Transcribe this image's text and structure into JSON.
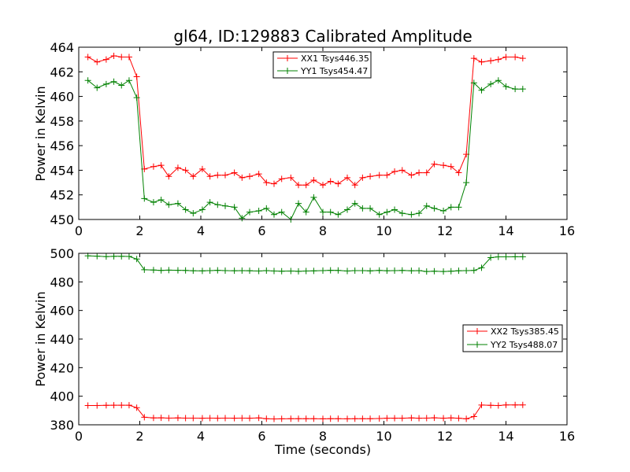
{
  "chart_data": [
    {
      "type": "line",
      "title": "gl64, ID:129883 Calibrated Amplitude",
      "xlabel": "",
      "ylabel": "Power in Kelvin",
      "xlim": [
        0,
        16
      ],
      "ylim": [
        450,
        464
      ],
      "xticks": [
        0,
        2,
        4,
        6,
        8,
        10,
        12,
        14,
        16
      ],
      "yticks": [
        450,
        452,
        454,
        456,
        458,
        460,
        462,
        464
      ],
      "grid": false,
      "legend_position": "top-center",
      "x": [
        0.3,
        0.6,
        0.9,
        1.15,
        1.4,
        1.65,
        1.9,
        2.15,
        2.45,
        2.7,
        2.95,
        3.25,
        3.5,
        3.75,
        4.05,
        4.3,
        4.55,
        4.8,
        5.1,
        5.35,
        5.6,
        5.9,
        6.15,
        6.4,
        6.65,
        6.95,
        7.2,
        7.45,
        7.7,
        8.0,
        8.25,
        8.5,
        8.8,
        9.05,
        9.3,
        9.55,
        9.85,
        10.1,
        10.35,
        10.6,
        10.9,
        11.15,
        11.4,
        11.65,
        11.95,
        12.2,
        12.45,
        12.7,
        12.95,
        13.2,
        13.5,
        13.75,
        14.0,
        14.3,
        14.55
      ],
      "series": [
        {
          "name": "XX1 Tsys446.35",
          "color": "#ff0000",
          "values": [
            463.2,
            462.8,
            463.0,
            463.3,
            463.2,
            463.2,
            461.6,
            454.1,
            454.3,
            454.4,
            453.5,
            454.2,
            454.0,
            453.5,
            454.1,
            453.5,
            453.6,
            453.6,
            453.8,
            453.4,
            453.5,
            453.7,
            453.0,
            452.9,
            453.3,
            453.4,
            452.8,
            452.8,
            453.2,
            452.8,
            453.1,
            452.9,
            453.4,
            452.8,
            453.4,
            453.5,
            453.6,
            453.6,
            453.9,
            454.0,
            453.6,
            453.8,
            453.8,
            454.5,
            454.4,
            454.3,
            453.8,
            455.3,
            463.1,
            462.8,
            462.9,
            463.0,
            463.2,
            463.2,
            463.1
          ]
        },
        {
          "name": "YY1 Tsys454.47",
          "color": "#008000",
          "values": [
            461.3,
            460.7,
            461.0,
            461.2,
            460.9,
            461.3,
            459.9,
            451.7,
            451.4,
            451.6,
            451.2,
            451.3,
            450.8,
            450.5,
            450.8,
            451.4,
            451.2,
            451.1,
            451.0,
            450.1,
            450.6,
            450.7,
            450.9,
            450.4,
            450.6,
            450.0,
            451.3,
            450.6,
            451.8,
            450.6,
            450.6,
            450.4,
            450.8,
            451.3,
            450.9,
            450.9,
            450.4,
            450.6,
            450.8,
            450.5,
            450.4,
            450.5,
            451.1,
            450.9,
            450.7,
            451.0,
            451.0,
            453.0,
            461.1,
            460.5,
            461.0,
            461.3,
            460.8,
            460.6,
            460.6
          ]
        }
      ]
    },
    {
      "type": "line",
      "title": "",
      "xlabel": "Time (seconds)",
      "ylabel": "Power in Kelvin",
      "xlim": [
        0,
        16
      ],
      "ylim": [
        380,
        500
      ],
      "xticks": [
        0,
        2,
        4,
        6,
        8,
        10,
        12,
        14,
        16
      ],
      "yticks": [
        380,
        400,
        420,
        440,
        460,
        480,
        500
      ],
      "grid": false,
      "legend_position": "center-right",
      "x": [
        0.3,
        0.6,
        0.9,
        1.15,
        1.4,
        1.65,
        1.9,
        2.15,
        2.45,
        2.7,
        2.95,
        3.25,
        3.5,
        3.75,
        4.05,
        4.3,
        4.55,
        4.8,
        5.1,
        5.35,
        5.6,
        5.9,
        6.15,
        6.4,
        6.65,
        6.95,
        7.2,
        7.45,
        7.7,
        8.0,
        8.25,
        8.5,
        8.8,
        9.05,
        9.3,
        9.55,
        9.85,
        10.1,
        10.35,
        10.6,
        10.9,
        11.15,
        11.4,
        11.65,
        11.95,
        12.2,
        12.45,
        12.7,
        12.95,
        13.2,
        13.5,
        13.75,
        14.0,
        14.3,
        14.55
      ],
      "series": [
        {
          "name": "XX2 Tsys385.45",
          "color": "#ff0000",
          "values": [
            393.5,
            393.5,
            393.6,
            393.7,
            393.7,
            393.7,
            392.0,
            385.3,
            384.8,
            384.9,
            384.7,
            384.8,
            384.7,
            384.7,
            384.6,
            384.7,
            384.6,
            384.7,
            384.6,
            384.7,
            384.6,
            384.8,
            384.3,
            384.1,
            384.2,
            384.3,
            384.3,
            384.3,
            384.3,
            384.2,
            384.3,
            384.3,
            384.2,
            384.3,
            384.3,
            384.3,
            384.4,
            384.6,
            384.6,
            384.6,
            384.8,
            384.6,
            384.7,
            384.9,
            384.6,
            384.8,
            384.6,
            384.2,
            385.8,
            393.8,
            393.6,
            393.5,
            393.9,
            393.9,
            393.9
          ]
        },
        {
          "name": "YY2 Tsys488.07",
          "color": "#008000",
          "values": [
            498.2,
            498.0,
            497.7,
            497.9,
            497.9,
            497.8,
            496.0,
            488.5,
            488.3,
            488.0,
            488.2,
            488.1,
            488.0,
            487.8,
            487.7,
            487.9,
            488.1,
            487.9,
            487.8,
            487.9,
            487.8,
            487.6,
            487.9,
            487.6,
            487.5,
            487.6,
            487.4,
            487.6,
            487.7,
            487.9,
            488.1,
            488.0,
            487.6,
            487.9,
            487.9,
            487.7,
            488.0,
            487.8,
            487.9,
            488.0,
            487.8,
            487.9,
            487.3,
            487.5,
            487.3,
            487.5,
            487.8,
            487.9,
            488.0,
            489.9,
            497.0,
            497.5,
            497.5,
            497.6,
            497.6
          ]
        }
      ]
    }
  ]
}
